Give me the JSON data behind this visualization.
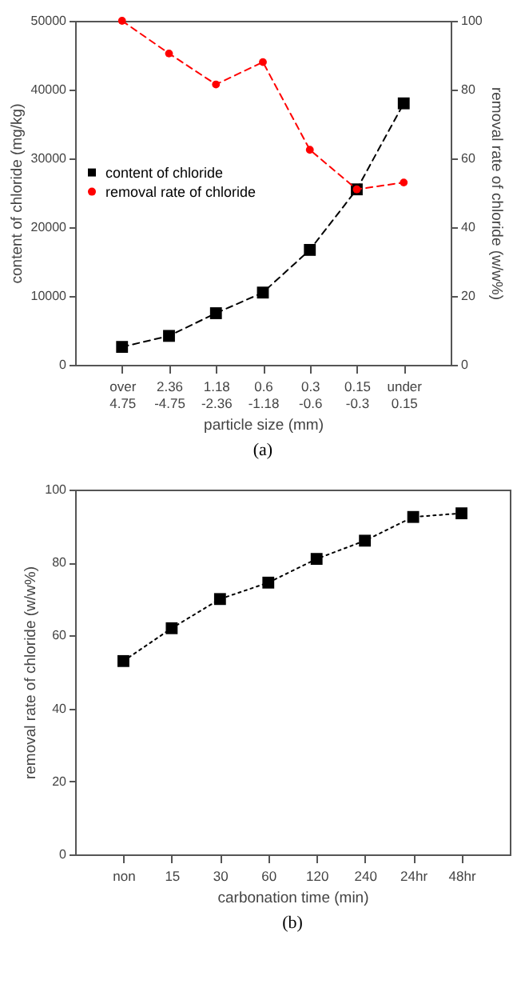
{
  "chart_data": [
    {
      "type": "line",
      "xlabel": "particle size (mm)",
      "ylabel": "content of chloride (mg/kg)",
      "y2label": "removal rate of chloride (w/w%)",
      "categories": [
        "over 4.75",
        "2.36 -4.75",
        "1.18 -2.36",
        "0.6 -1.18",
        "0.3 -0.6",
        "0.15 -0.3",
        "under 0.15"
      ],
      "series": [
        {
          "name": "content of chloride",
          "color": "#000000",
          "marker": "square",
          "values": [
            2600,
            4200,
            7500,
            10500,
            16700,
            25500,
            38000
          ]
        },
        {
          "name": "removal rate of chloride",
          "color": "#ff0000",
          "marker": "circle",
          "axis": "y2",
          "values": [
            100,
            90.5,
            81.5,
            88,
            62.5,
            51,
            53
          ]
        }
      ],
      "ylim": [
        0,
        50000
      ],
      "yticks": [
        0,
        10000,
        20000,
        30000,
        40000,
        50000
      ],
      "y2lim": [
        0,
        100
      ],
      "y2ticks": [
        0,
        20,
        40,
        60,
        80,
        100
      ],
      "legend": "left",
      "line_style": "dashed",
      "annotations": [
        "(a)"
      ]
    },
    {
      "type": "line",
      "xlabel": "carbonation time (min)",
      "ylabel": "removal rate of chloride (w/w%)",
      "categories": [
        "non",
        "15",
        "30",
        "60",
        "120",
        "240",
        "24hr",
        "48hr"
      ],
      "series": [
        {
          "color": "#000000",
          "values": [
            53,
            62,
            70,
            74.5,
            81,
            86,
            92.5,
            93.5
          ]
        }
      ],
      "ylim": [
        0,
        100
      ],
      "yticks": [
        0,
        20,
        40,
        60,
        80,
        100
      ],
      "marker": "square",
      "line_style": "dotted",
      "annotations": [
        "(b)"
      ]
    }
  ]
}
